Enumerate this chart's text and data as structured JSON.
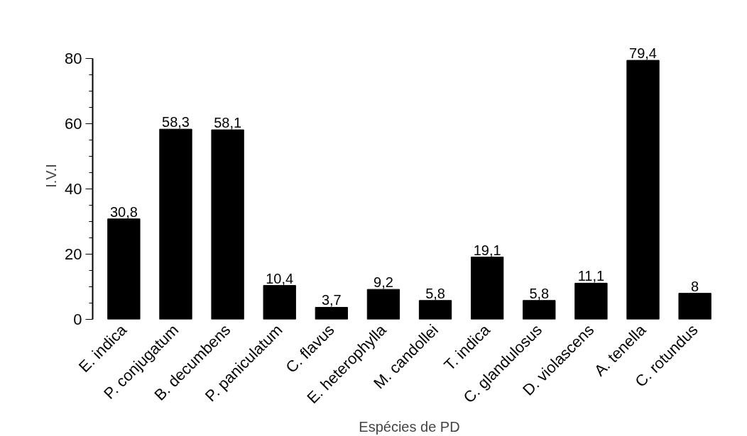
{
  "chart_data": {
    "type": "bar",
    "xlabel": "Espécies de PD",
    "ylabel": "I.V.I",
    "categories": [
      "E. indica",
      "P. conjugatum",
      "B. decumbens",
      "P. paniculatum",
      "C. flavus",
      "E. heterophylla",
      "M. candollei",
      "T. indica",
      "C. glandulosus",
      "D. violascens",
      "A. tenella",
      "C. rotundus"
    ],
    "values": [
      30.8,
      58.3,
      58.1,
      10.4,
      3.7,
      9.2,
      5.8,
      19.1,
      5.8,
      11.1,
      79.4,
      8
    ],
    "value_labels": [
      "30,8",
      "58,3",
      "58,1",
      "10,4",
      "3,7",
      "9,2",
      "5,8",
      "19,1",
      "5,8",
      "11,1",
      "79,4",
      "8"
    ],
    "color": "#000000",
    "ylim": [
      0,
      80
    ],
    "yticks": [
      0,
      20,
      40,
      60,
      80
    ],
    "grid": false
  }
}
